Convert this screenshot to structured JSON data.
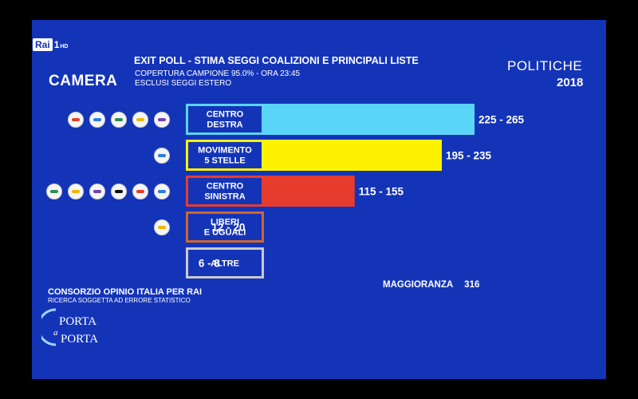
{
  "broadcaster": {
    "logo": "Rai",
    "channel": "1",
    "channel_suffix": "HD"
  },
  "chamber": "CAMERA",
  "title": "EXIT POLL - STIMA SEGGI COALIZIONI E PRINCIPALI LISTE",
  "subtitle_1": "COPERTURA CAMPIONE 95.0% - ORA 23:45",
  "subtitle_2": "ESCLUSI SEGGI ESTERO",
  "election": {
    "name": "POLITICHE",
    "year": "2018"
  },
  "majority": {
    "label": "MAGGIORANZA",
    "value": "316"
  },
  "source": "CONSORZIO OPINIO ITALIA PER RAI",
  "disclaimer": "RICERCA SOGGETTA AD ERRORE STATISTICO",
  "show_logo": {
    "line1": "PORTA",
    "line2": "a",
    "line3": "PORTA"
  },
  "colors": {
    "background": "#1434b8",
    "centro_destra": "#5ad5f7",
    "m5s": "#fff200",
    "centro_sinistra": "#e63c2d",
    "leu": "#d0652a",
    "altre": "#c9c9c9"
  },
  "chart_data": {
    "type": "bar",
    "orientation": "horizontal",
    "categories": [
      [
        "CENTRO",
        "DESTRA"
      ],
      [
        "MOVIMENTO",
        "5 STELLE"
      ],
      [
        "CENTRO",
        "SINISTRA"
      ],
      [
        "LIBERI",
        "E UGUALI"
      ],
      [
        "ALTRE"
      ]
    ],
    "ranges": [
      {
        "min": 225,
        "max": 265,
        "label": "225 - 265"
      },
      {
        "min": 195,
        "max": 235,
        "label": "195 - 235"
      },
      {
        "min": 115,
        "max": 155,
        "label": "115 - 155"
      },
      {
        "min": 12,
        "max": 20,
        "label": "12 - 20"
      },
      {
        "min": 6,
        "max": 8,
        "label": "6 - 8"
      }
    ],
    "bar_colors": [
      "#5ad5f7",
      "#fff200",
      "#e63c2d",
      "#d0652a",
      "#c9c9c9"
    ],
    "logo_counts": [
      5,
      1,
      6,
      1,
      0
    ]
  }
}
